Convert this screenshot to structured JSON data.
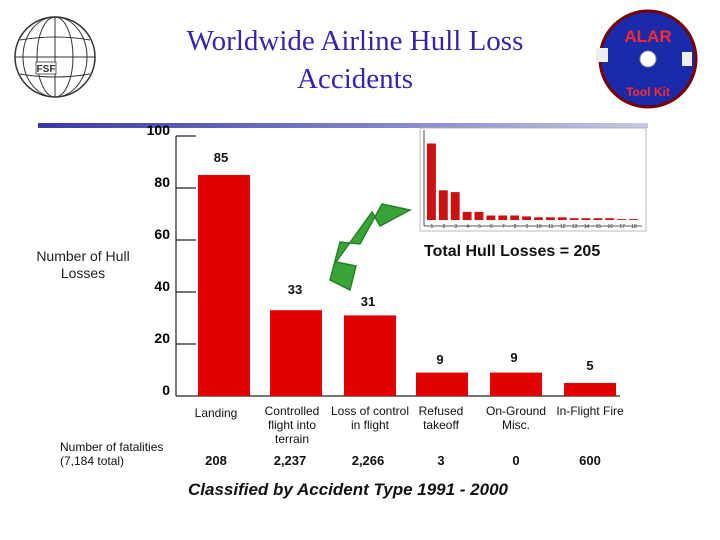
{
  "header": {
    "title_lines": [
      "Worldwide Airline Hull Loss",
      "Accidents"
    ]
  },
  "logos": {
    "left_text": "FSF",
    "right_text_top": "ALAR",
    "right_text_bottom": "Tool Kit"
  },
  "footer": "Classified by Accident Type 1991 - 2000",
  "fatalities_label": "Number of fatalities (7,184 total)",
  "total_label": "Total Hull Losses = 205",
  "colors": {
    "bar": "#e00000",
    "title": "#3a1fb0",
    "arrow": "#2ea02e"
  },
  "chart_data": {
    "type": "bar",
    "title": "Worldwide Airline Hull Loss Accidents",
    "subtitle": "Classified by Accident Type 1991 - 2000",
    "ylabel": "Number of Hull Losses",
    "xlabel": "",
    "ylim": [
      0,
      100
    ],
    "yticks": [
      "0",
      "20",
      "40",
      "60",
      "80",
      "100"
    ],
    "categories": [
      "Landing",
      "Controlled flight into terrain",
      "Loss of control in flight",
      "Refused takeoff",
      "On-Ground Misc.",
      "In-Flight Fire"
    ],
    "values": [
      85,
      33,
      31,
      9,
      9,
      5
    ],
    "value_labels": [
      "85",
      "33",
      "31",
      "9",
      "9",
      "5"
    ],
    "fatalities": [
      "208",
      "2,237",
      "2,266",
      "3",
      "0",
      "600"
    ],
    "grid": false,
    "legend": "none"
  },
  "inset_chart": {
    "type": "bar",
    "title": "Total Hull Losses = 205",
    "categories": [
      "1",
      "2",
      "3",
      "4",
      "5",
      "6",
      "7",
      "8",
      "9",
      "10",
      "11",
      "12",
      "13",
      "14",
      "15",
      "16",
      "17",
      "18"
    ],
    "values": [
      85,
      33,
      31,
      9,
      9,
      5,
      5,
      5,
      4,
      3,
      3,
      3,
      2,
      2,
      2,
      2,
      1,
      1
    ],
    "ylim": [
      0,
      100
    ]
  }
}
